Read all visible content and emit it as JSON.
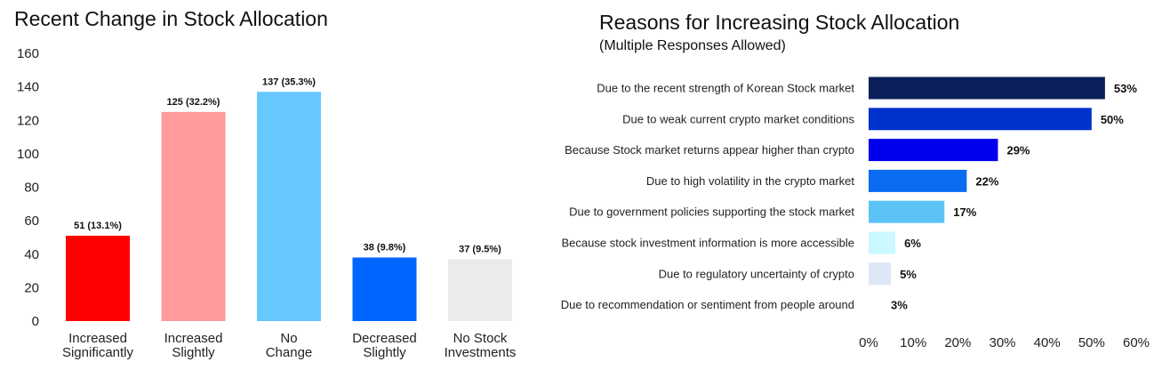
{
  "chart_data": [
    {
      "type": "bar",
      "title": "Recent Change in Stock Allocation",
      "categories": [
        [
          "Increased",
          "Significantly"
        ],
        [
          "Increased",
          "Slightly"
        ],
        [
          "No",
          "Change"
        ],
        [
          "Decreased",
          "Slightly"
        ],
        [
          "No Stock",
          "Investments"
        ]
      ],
      "values": [
        51,
        125,
        137,
        38,
        37
      ],
      "data_labels": [
        "51 (13.1%)",
        "125 (32.2%)",
        "137 (35.3%)",
        "38 (9.8%)",
        "37 (9.5%)"
      ],
      "colors": [
        "#ff0000",
        "#ff9b9b",
        "#66c8ff",
        "#0066ff",
        "#ebebeb"
      ],
      "ylim": [
        0,
        160
      ],
      "yticks": [
        0,
        20,
        40,
        60,
        80,
        100,
        120,
        140,
        160
      ],
      "grid": false,
      "legend": "none"
    },
    {
      "type": "bar",
      "orientation": "horizontal",
      "title": "Reasons for Increasing Stock Allocation",
      "subtitle": "(Multiple Responses Allowed)",
      "categories": [
        "Due to the recent strength of Korean Stock market",
        "Due to weak current crypto market conditions",
        "Because Stock market returns appear higher than crypto",
        "Due to high volatility in the crypto market",
        "Due to government policies supporting the stock market",
        "Because stock investment information is more accessible",
        "Due to regulatory uncertainty of crypto",
        "Due to recommendation or sentiment from people around"
      ],
      "values": [
        53,
        50,
        29,
        22,
        17,
        6,
        5,
        3
      ],
      "data_labels": [
        "53%",
        "50%",
        "29%",
        "22%",
        "17%",
        "6%",
        "5%",
        "3%"
      ],
      "colors": [
        "#0a1f5c",
        "#0033cc",
        "#0000ee",
        "#0a6cf0",
        "#5cc3f7",
        "#ccf8ff",
        "#dde8f7",
        "#ffffff"
      ],
      "xlim": [
        0,
        60
      ],
      "xticks": [
        "0%",
        "10%",
        "20%",
        "30%",
        "40%",
        "50%",
        "60%"
      ],
      "grid": false,
      "legend": "none"
    }
  ]
}
